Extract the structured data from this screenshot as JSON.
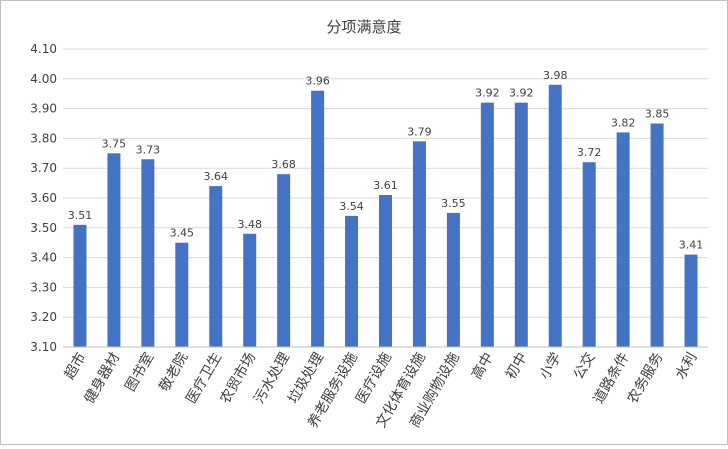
{
  "chart_data": {
    "type": "bar",
    "title": "分项满意度",
    "xlabel": "",
    "ylabel": "",
    "ylim": [
      3.1,
      4.1
    ],
    "yticks": [
      "3.10",
      "3.20",
      "3.30",
      "3.40",
      "3.50",
      "3.60",
      "3.70",
      "3.80",
      "3.90",
      "4.00",
      "4.10"
    ],
    "grid": true,
    "legend": "none",
    "bar_color": "#4472C4",
    "categories": [
      "超市",
      "健身器材",
      "图书室",
      "敬老院",
      "医疗卫生",
      "农贸市场",
      "污水处理",
      "垃圾处理",
      "养老服务设施",
      "医疗设施",
      "文化体育设施",
      "商业购物设施",
      "高中",
      "初中",
      "小学",
      "公交",
      "道路条件",
      "农务服务",
      "水利"
    ],
    "values": [
      3.51,
      3.75,
      3.73,
      3.45,
      3.64,
      3.48,
      3.68,
      3.96,
      3.54,
      3.61,
      3.79,
      3.55,
      3.92,
      3.92,
      3.98,
      3.72,
      3.82,
      3.85,
      3.41
    ],
    "value_labels": [
      "3.51",
      "3.75",
      "3.73",
      "3.45",
      "3.64",
      "3.48",
      "3.68",
      "3.96",
      "3.54",
      "3.61",
      "3.79",
      "3.55",
      "3.92",
      "3.92",
      "3.98",
      "3.72",
      "3.82",
      "3.85",
      "3.41"
    ]
  }
}
